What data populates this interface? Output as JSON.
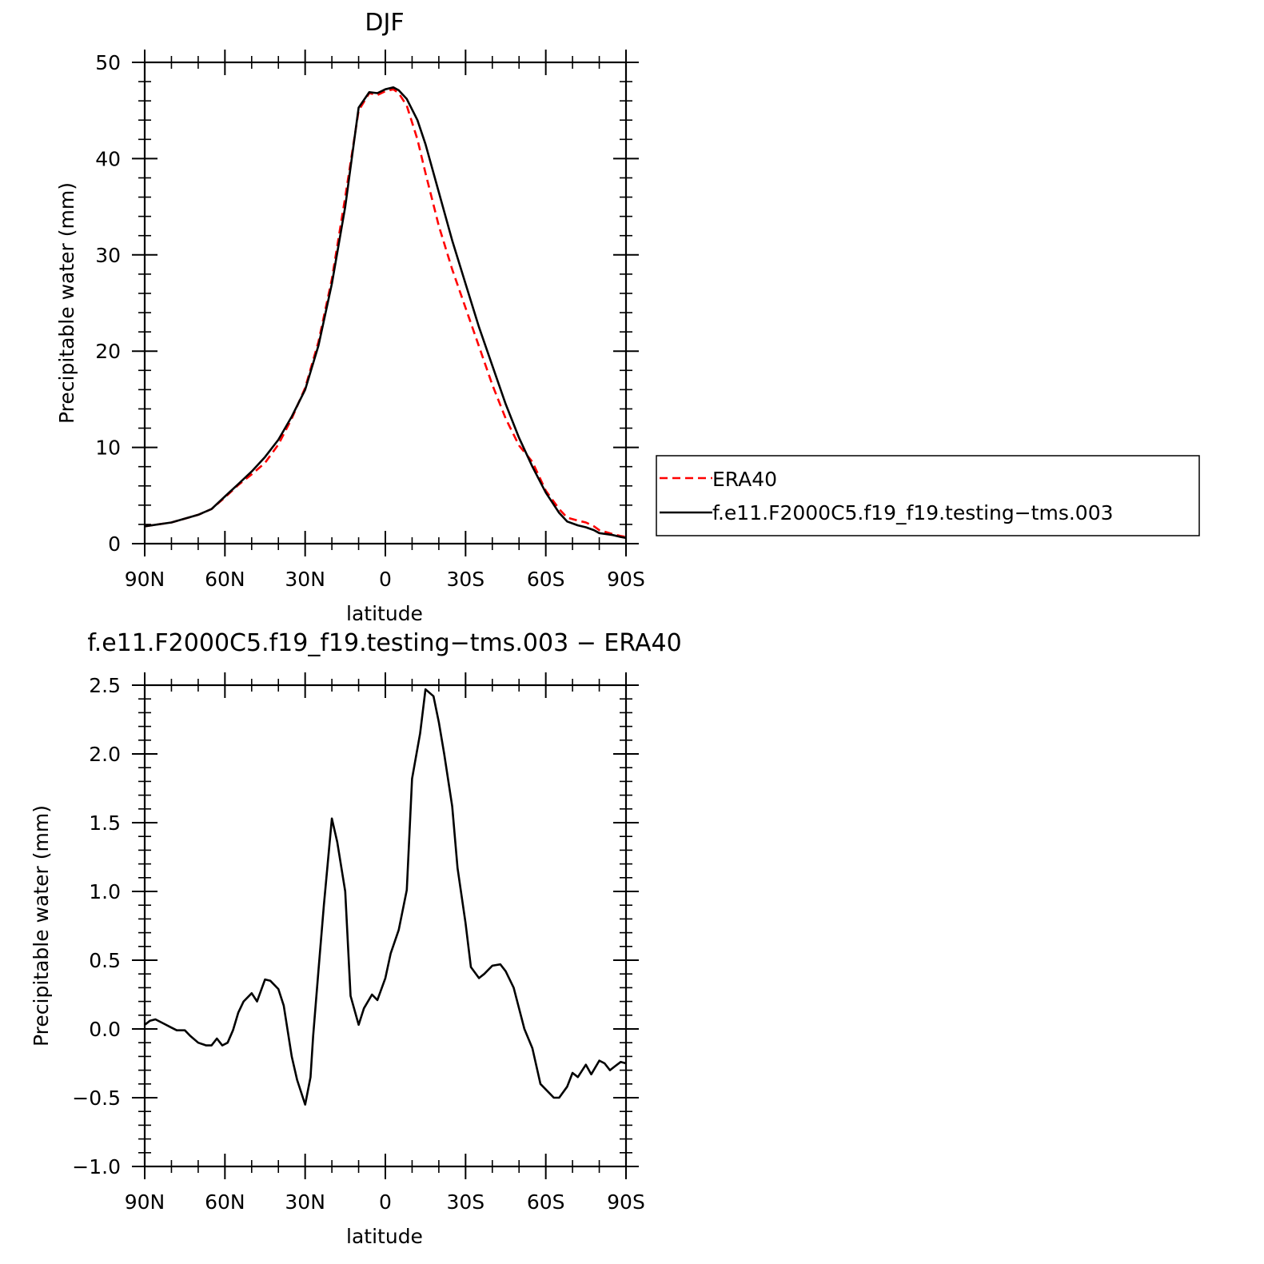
{
  "chart_data": [
    {
      "type": "line",
      "title": "DJF",
      "xlabel": "latitude",
      "ylabel": "Precipitable water (mm)",
      "xlim": [
        -90,
        90
      ],
      "ylim": [
        0,
        50
      ],
      "yticks": [
        "0",
        "10",
        "20",
        "30",
        "40",
        "50"
      ],
      "yticks_values": [
        0,
        10,
        20,
        30,
        40,
        50
      ],
      "xticks": [
        "90N",
        "60N",
        "30N",
        "0",
        "30S",
        "60S",
        "90S"
      ],
      "xticks_values": [
        -90,
        -60,
        -30,
        0,
        30,
        60,
        90
      ],
      "grid": false,
      "legend_position": "right",
      "series": [
        {
          "name": "ERA40",
          "color": "#ff0000",
          "dash": "dashed",
          "x": [
            -90,
            -80,
            -70,
            -65,
            -60,
            -55,
            -50,
            -45,
            -40,
            -35,
            -30,
            -25,
            -20,
            -15,
            -10,
            -6,
            -3,
            0,
            3,
            5,
            8,
            12,
            15,
            20,
            25,
            30,
            35,
            40,
            45,
            50,
            55,
            60,
            65,
            68,
            72,
            75,
            78,
            80,
            85,
            88,
            90
          ],
          "y": [
            1.8,
            2.2,
            3.0,
            3.6,
            4.8,
            6.1,
            7.2,
            8.4,
            10.3,
            13.0,
            16.2,
            21.0,
            27.5,
            36.0,
            45.0,
            46.8,
            46.6,
            47.0,
            47.2,
            46.8,
            45.5,
            42.0,
            38.5,
            33.0,
            28.5,
            24.5,
            20.5,
            16.5,
            13.0,
            10.2,
            8.5,
            5.5,
            3.6,
            2.7,
            2.4,
            2.2,
            1.8,
            1.4,
            1.0,
            0.8,
            0.7
          ]
        },
        {
          "name": "f.e11.F2000C5.f19_f19.testing−tms.003",
          "color": "#000000",
          "dash": "solid",
          "x": [
            -90,
            -80,
            -70,
            -65,
            -60,
            -55,
            -50,
            -45,
            -40,
            -35,
            -30,
            -25,
            -20,
            -15,
            -10,
            -6,
            -3,
            0,
            3,
            5,
            8,
            12,
            15,
            20,
            25,
            30,
            35,
            40,
            45,
            50,
            55,
            60,
            65,
            68,
            72,
            75,
            78,
            80,
            85,
            88,
            90
          ],
          "y": [
            1.8,
            2.2,
            3.0,
            3.6,
            4.9,
            6.2,
            7.5,
            9.0,
            10.8,
            13.2,
            16.0,
            20.6,
            27.0,
            35.0,
            45.3,
            46.9,
            46.8,
            47.2,
            47.4,
            47.1,
            46.2,
            44.0,
            41.5,
            36.5,
            31.5,
            27.0,
            22.5,
            18.5,
            14.5,
            11.0,
            8.0,
            5.3,
            3.2,
            2.3,
            1.9,
            1.7,
            1.4,
            1.1,
            0.9,
            0.7,
            0.6
          ]
        }
      ]
    },
    {
      "type": "line",
      "title": "f.e11.F2000C5.f19_f19.testing−tms.003 − ERA40",
      "xlabel": "latitude",
      "ylabel": "Precipitable water (mm)",
      "xlim": [
        -90,
        90
      ],
      "ylim": [
        -1.0,
        2.5
      ],
      "yticks": [
        "−1.0",
        "−0.5",
        "0.0",
        "0.5",
        "1.0",
        "1.5",
        "2.0",
        "2.5"
      ],
      "yticks_values": [
        -1.0,
        -0.5,
        0.0,
        0.5,
        1.0,
        1.5,
        2.0,
        2.5
      ],
      "xticks": [
        "90N",
        "60N",
        "30N",
        "0",
        "30S",
        "60S",
        "90S"
      ],
      "xticks_values": [
        -90,
        -60,
        -30,
        0,
        30,
        60,
        90
      ],
      "grid": false,
      "series": [
        {
          "color": "#000000",
          "dash": "solid",
          "x": [
            -90,
            -88,
            -86,
            -83,
            -80,
            -78,
            -75,
            -73,
            -70,
            -67,
            -65,
            -63,
            -61,
            -59,
            -57,
            -55,
            -53,
            -50,
            -48,
            -45,
            -43,
            -40,
            -38,
            -35,
            -33,
            -30,
            -28,
            -27,
            -25,
            -23,
            -20,
            -18,
            -15,
            -13,
            -10,
            -8,
            -5,
            -3,
            0,
            2,
            5,
            8,
            10,
            13,
            15,
            18,
            20,
            22,
            25,
            27,
            30,
            32,
            35,
            37,
            40,
            43,
            45,
            48,
            50,
            52,
            55,
            58,
            60,
            63,
            65,
            68,
            70,
            72,
            75,
            77,
            80,
            82,
            84,
            86,
            88,
            90
          ],
          "y": [
            0.03,
            0.06,
            0.07,
            0.04,
            0.01,
            -0.01,
            -0.01,
            -0.05,
            -0.1,
            -0.12,
            -0.12,
            -0.07,
            -0.12,
            -0.1,
            -0.01,
            0.12,
            0.2,
            0.26,
            0.2,
            0.36,
            0.35,
            0.29,
            0.17,
            -0.2,
            -0.37,
            -0.55,
            -0.35,
            -0.05,
            0.43,
            0.9,
            1.53,
            1.36,
            1.0,
            0.24,
            0.03,
            0.15,
            0.25,
            0.21,
            0.37,
            0.55,
            0.72,
            1.01,
            1.82,
            2.15,
            2.47,
            2.42,
            2.23,
            2.0,
            1.62,
            1.17,
            0.77,
            0.45,
            0.37,
            0.4,
            0.46,
            0.47,
            0.42,
            0.3,
            0.15,
            0.0,
            -0.14,
            -0.4,
            -0.44,
            -0.5,
            -0.5,
            -0.42,
            -0.32,
            -0.35,
            -0.26,
            -0.33,
            -0.23,
            -0.25,
            -0.3,
            -0.27,
            -0.24,
            -0.25
          ]
        }
      ]
    }
  ]
}
